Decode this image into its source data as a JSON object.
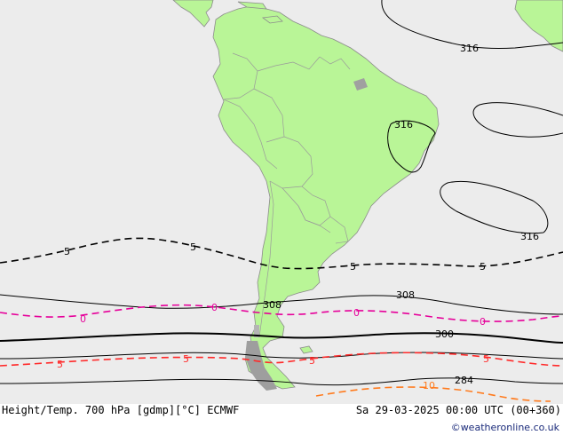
{
  "colors": {
    "ocean": "#ececec",
    "land": "#b9f597",
    "coast": "#8c8c8c",
    "border": "#9a9a9a",
    "height_contour": "#000000",
    "temp_minus5": "#000000",
    "temp_0": "#e6009a",
    "temp_5": "#ff2a2a",
    "temp_10": "#ff7b1e",
    "credit": "#1a2a7a"
  },
  "contour_labels": {
    "h316_ne": "316",
    "h316_brazil": "316",
    "h316_atlantic": "316",
    "h308_west": "308",
    "h308_east": "308",
    "h300": "300",
    "h284": "284",
    "t_m5_a": "5",
    "t_m5_b": "5",
    "t_m5_c": "5",
    "t_m5_d": "5",
    "t_0_a": "0",
    "t_0_b": "0",
    "t_0_c": "0",
    "t_0_d": "0",
    "t_5_a": "5",
    "t_5_b": "5",
    "t_5_c": "5",
    "t_5_d": "5",
    "t_10": "10"
  },
  "footer": {
    "title": "Height/Temp. 700 hPa [gdmp][°C] ECMWF",
    "valid_time": "Sa 29-03-2025 00:00 UTC (00+360)",
    "credit": "©weatheronline.co.uk"
  }
}
